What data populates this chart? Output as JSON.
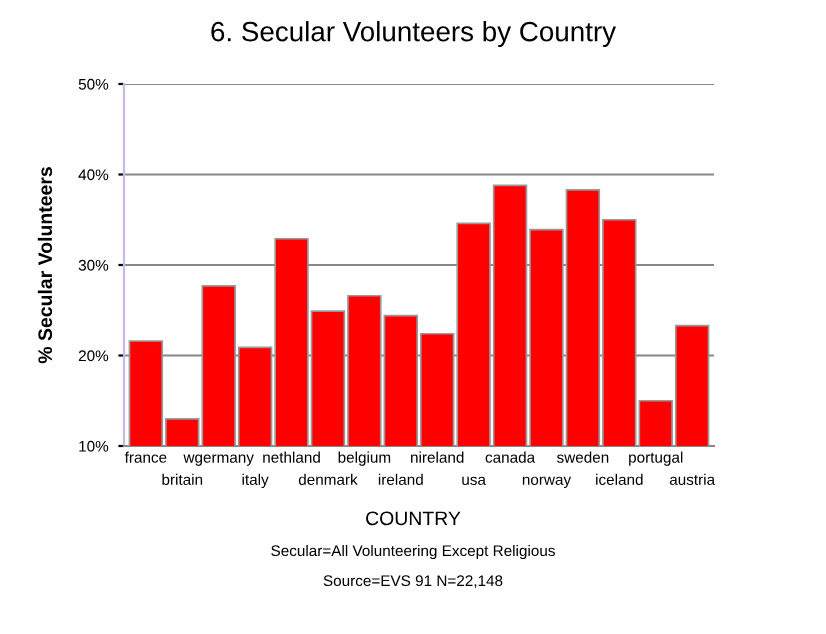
{
  "chart_data": {
    "type": "bar",
    "title": "6. Secular Volunteers by Country",
    "xlabel": "COUNTRY",
    "ylabel": "% Secular Volunteers",
    "categories": [
      "france",
      "britain",
      "wgermany",
      "italy",
      "nethland",
      "denmark",
      "belgium",
      "ireland",
      "nireland",
      "usa",
      "canada",
      "norway",
      "sweden",
      "iceland",
      "portugal",
      "austria"
    ],
    "values": [
      21.6,
      13.0,
      27.7,
      20.9,
      32.9,
      24.9,
      26.6,
      24.4,
      22.4,
      34.6,
      38.8,
      33.9,
      38.3,
      35.0,
      15.0,
      23.3
    ],
    "color": "#ff0000",
    "ylim": [
      10,
      50
    ],
    "yticks": [
      {
        "value": 10,
        "label": "10%"
      },
      {
        "value": 20,
        "label": "20%"
      },
      {
        "value": 30,
        "label": "30%"
      },
      {
        "value": 40,
        "label": "40%"
      },
      {
        "value": 50,
        "label": "50%"
      }
    ],
    "grid": "y",
    "annotations": [
      "Secular=All Volunteering Except Religious",
      "Source=EVS 91 N=22,148"
    ]
  }
}
